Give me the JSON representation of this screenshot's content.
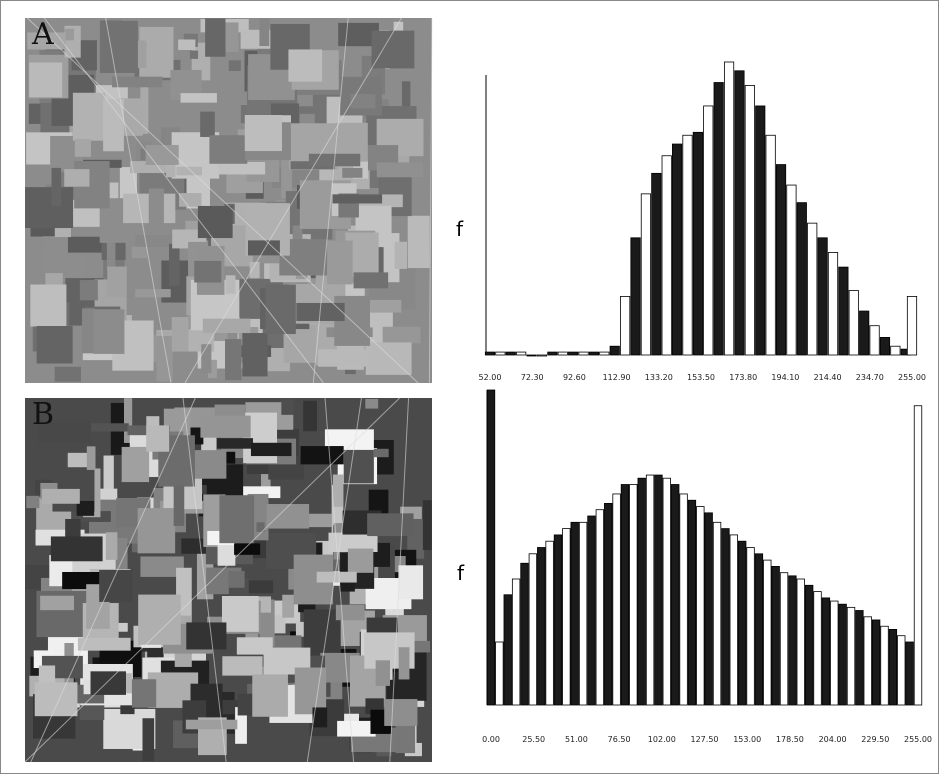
{
  "chart_data": [
    {
      "type": "bar",
      "label": "A",
      "ylabel": "f",
      "colors": [
        "#1a1a1a",
        "#ffffff"
      ],
      "x": [
        52,
        57,
        62,
        67,
        72,
        77,
        82,
        87,
        92,
        97,
        102,
        107,
        112,
        117,
        122,
        127,
        132,
        137,
        142,
        147,
        152,
        157,
        162,
        167,
        172,
        177,
        182,
        187,
        192,
        197,
        202,
        207,
        212,
        217,
        222,
        227,
        232,
        237,
        242,
        247,
        252,
        255
      ],
      "values": [
        1,
        1,
        1,
        1,
        0,
        0,
        1,
        1,
        1,
        1,
        1,
        1,
        3,
        20,
        40,
        55,
        62,
        68,
        72,
        75,
        76,
        85,
        93,
        100,
        97,
        92,
        85,
        75,
        65,
        58,
        52,
        45,
        40,
        35,
        30,
        22,
        15,
        10,
        6,
        3,
        2,
        20
      ],
      "xlim": [
        52,
        255
      ],
      "ylim": [
        0,
        100
      ],
      "xticks": [
        {
          "value": 52,
          "label": "52.00"
        },
        {
          "value": 72.3,
          "label": "72.30"
        },
        {
          "value": 92.6,
          "label": "92.60"
        },
        {
          "value": 112.9,
          "label": "112.90"
        },
        {
          "value": 133.2,
          "label": "133.20"
        },
        {
          "value": 153.5,
          "label": "153.50"
        },
        {
          "value": 173.8,
          "label": "173.80"
        },
        {
          "value": 194.1,
          "label": "194.10"
        },
        {
          "value": 214.4,
          "label": "214.40"
        },
        {
          "value": 234.7,
          "label": "234.70"
        },
        {
          "value": 255,
          "label": "255.00"
        }
      ]
    },
    {
      "type": "bar",
      "label": "B",
      "ylabel": "f",
      "colors": [
        "#1a1a1a",
        "#ffffff"
      ],
      "x": [
        0,
        5,
        10,
        15,
        20,
        25,
        30,
        35,
        40,
        45,
        50,
        55,
        60,
        65,
        70,
        75,
        80,
        85,
        90,
        95,
        100,
        105,
        110,
        115,
        120,
        125,
        130,
        135,
        140,
        145,
        150,
        155,
        160,
        165,
        170,
        175,
        180,
        185,
        190,
        195,
        200,
        205,
        210,
        215,
        220,
        225,
        230,
        235,
        240,
        245,
        250,
        255
      ],
      "values": [
        100,
        20,
        35,
        40,
        45,
        48,
        50,
        52,
        54,
        56,
        58,
        58,
        60,
        62,
        64,
        67,
        70,
        70,
        72,
        73,
        73,
        72,
        70,
        67,
        65,
        63,
        61,
        58,
        56,
        54,
        52,
        50,
        48,
        46,
        44,
        42,
        41,
        40,
        38,
        36,
        34,
        33,
        32,
        31,
        30,
        28,
        27,
        25,
        24,
        22,
        20,
        95
      ],
      "xlim": [
        0,
        255
      ],
      "ylim": [
        0,
        100
      ],
      "xticks": [
        {
          "value": 0,
          "label": "0.00"
        },
        {
          "value": 25.5,
          "label": "25.50"
        },
        {
          "value": 51,
          "label": "51.00"
        },
        {
          "value": 76.5,
          "label": "76.50"
        },
        {
          "value": 102,
          "label": "102.00"
        },
        {
          "value": 127.5,
          "label": "127.50"
        },
        {
          "value": 153,
          "label": "153.00"
        },
        {
          "value": 178.5,
          "label": "178.50"
        },
        {
          "value": 204,
          "label": "204.00"
        },
        {
          "value": 229.5,
          "label": "229.50"
        },
        {
          "value": 255,
          "label": "255.00"
        }
      ]
    }
  ]
}
